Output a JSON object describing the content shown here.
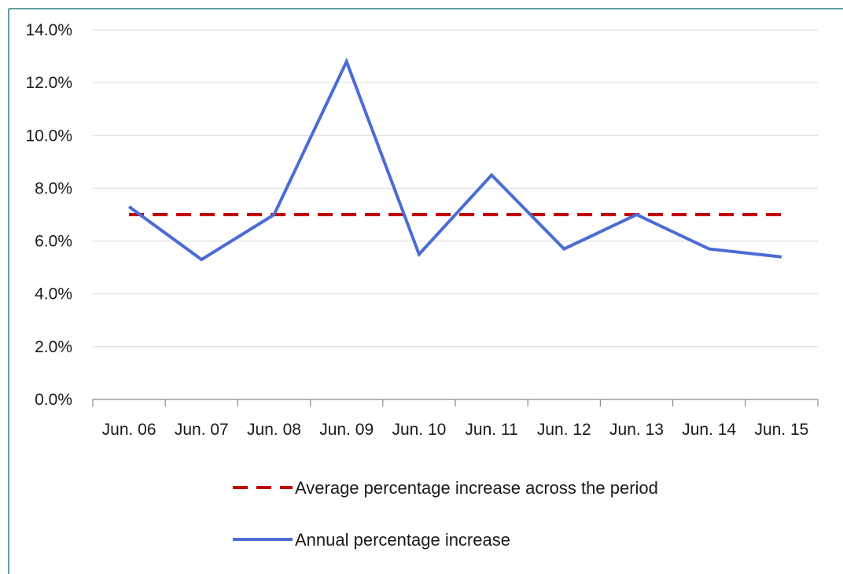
{
  "chart_data": {
    "type": "line",
    "title": "",
    "xlabel": "",
    "ylabel": "",
    "categories": [
      "Jun. 06",
      "Jun. 07",
      "Jun. 08",
      "Jun. 09",
      "Jun. 10",
      "Jun. 11",
      "Jun. 12",
      "Jun. 13",
      "Jun. 14",
      "Jun. 15"
    ],
    "ylim": [
      0,
      14
    ],
    "y_ticks": [
      "0.0%",
      "2.0%",
      "4.0%",
      "6.0%",
      "8.0%",
      "10.0%",
      "12.0%",
      "14.0%"
    ],
    "y_tick_values": [
      0,
      2,
      4,
      6,
      8,
      10,
      12,
      14
    ],
    "grid": "horizontal",
    "legend_position": "bottom",
    "series": [
      {
        "name": "Average percentage increase across the period",
        "style": "dashed",
        "color": "#c00000",
        "values": [
          7.0,
          7.0,
          7.0,
          7.0,
          7.0,
          7.0,
          7.0,
          7.0,
          7.0,
          7.0
        ]
      },
      {
        "name": "Annual percentage increase",
        "style": "solid",
        "color": "#4a6cd4",
        "values": [
          7.3,
          5.3,
          7.0,
          12.8,
          5.5,
          8.5,
          5.7,
          7.0,
          5.7,
          5.4
        ]
      }
    ]
  },
  "colors": {
    "frame": "#2e7d82",
    "grid": "#d9d9d9",
    "axis": "#8c8c8c"
  }
}
